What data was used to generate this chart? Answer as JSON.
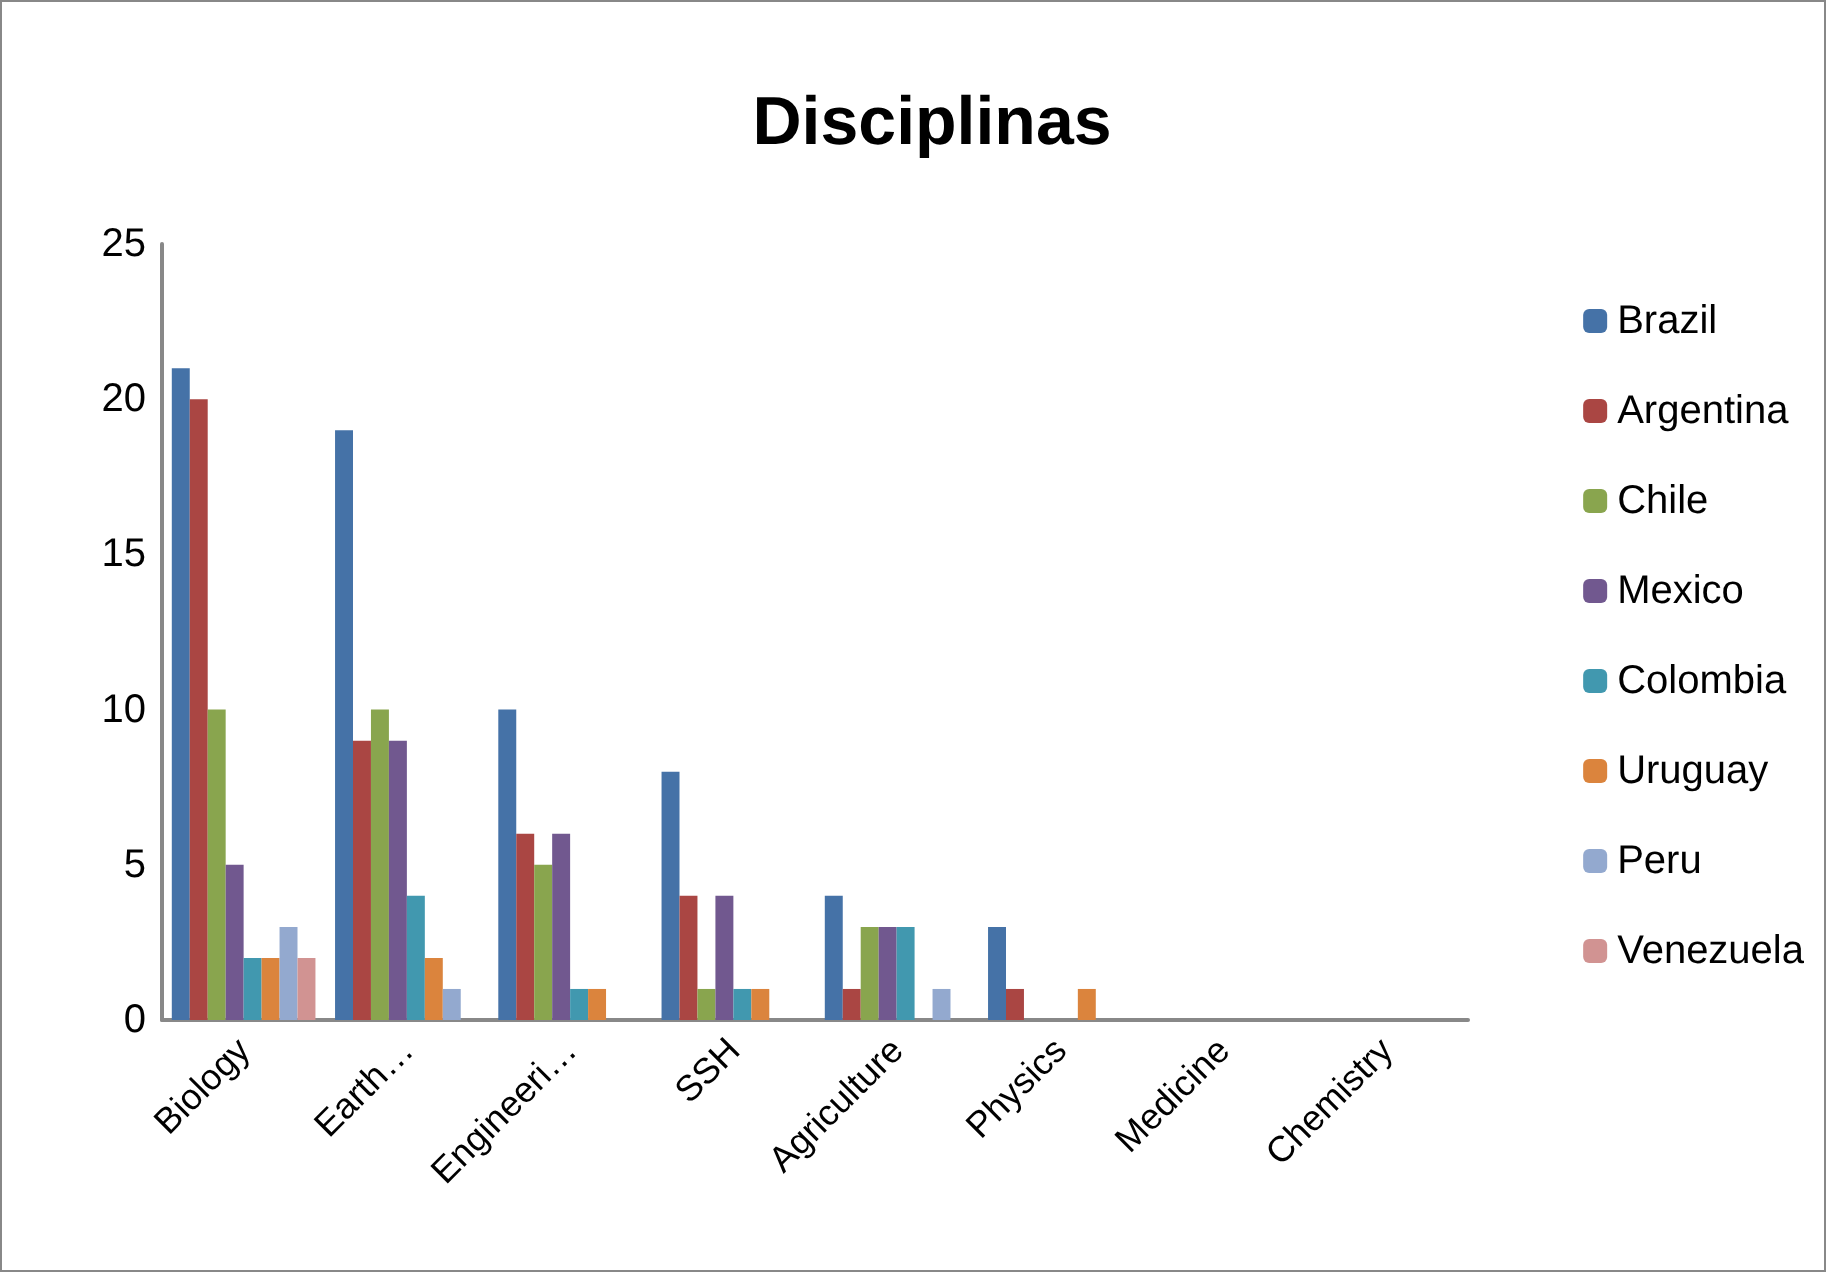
{
  "chart_data": {
    "type": "bar",
    "title": "Disciplinas",
    "categories": [
      "Biology",
      "Earth…",
      "Engineeri…",
      "SSH",
      "Agriculture",
      "Physics",
      "Medicine",
      "Chemistry"
    ],
    "series": [
      {
        "name": "Brazil",
        "color": "#4572a7",
        "values": [
          21,
          19,
          10,
          8,
          4,
          3,
          0,
          0
        ]
      },
      {
        "name": "Argentina",
        "color": "#aa4643",
        "values": [
          20,
          9,
          6,
          4,
          1,
          1,
          0,
          0
        ]
      },
      {
        "name": "Chile",
        "color": "#89a54e",
        "values": [
          10,
          10,
          5,
          1,
          3,
          0,
          0,
          0
        ]
      },
      {
        "name": "Mexico",
        "color": "#71588f",
        "values": [
          5,
          9,
          6,
          4,
          3,
          0,
          0,
          0
        ]
      },
      {
        "name": "Colombia",
        "color": "#4198af",
        "values": [
          2,
          4,
          1,
          1,
          3,
          0,
          0,
          0
        ]
      },
      {
        "name": "Uruguay",
        "color": "#db843d",
        "values": [
          2,
          2,
          1,
          1,
          0,
          1,
          0,
          0
        ]
      },
      {
        "name": "Peru",
        "color": "#93a9cf",
        "values": [
          3,
          1,
          0,
          0,
          1,
          0,
          0,
          0
        ]
      },
      {
        "name": "Venezuela",
        "color": "#d19392",
        "values": [
          2,
          0,
          0,
          0,
          0,
          0,
          0,
          0
        ]
      }
    ],
    "ylim": [
      0,
      25
    ],
    "yticks": [
      0,
      5,
      10,
      15,
      20,
      25
    ],
    "grid": false,
    "legend": "right"
  }
}
